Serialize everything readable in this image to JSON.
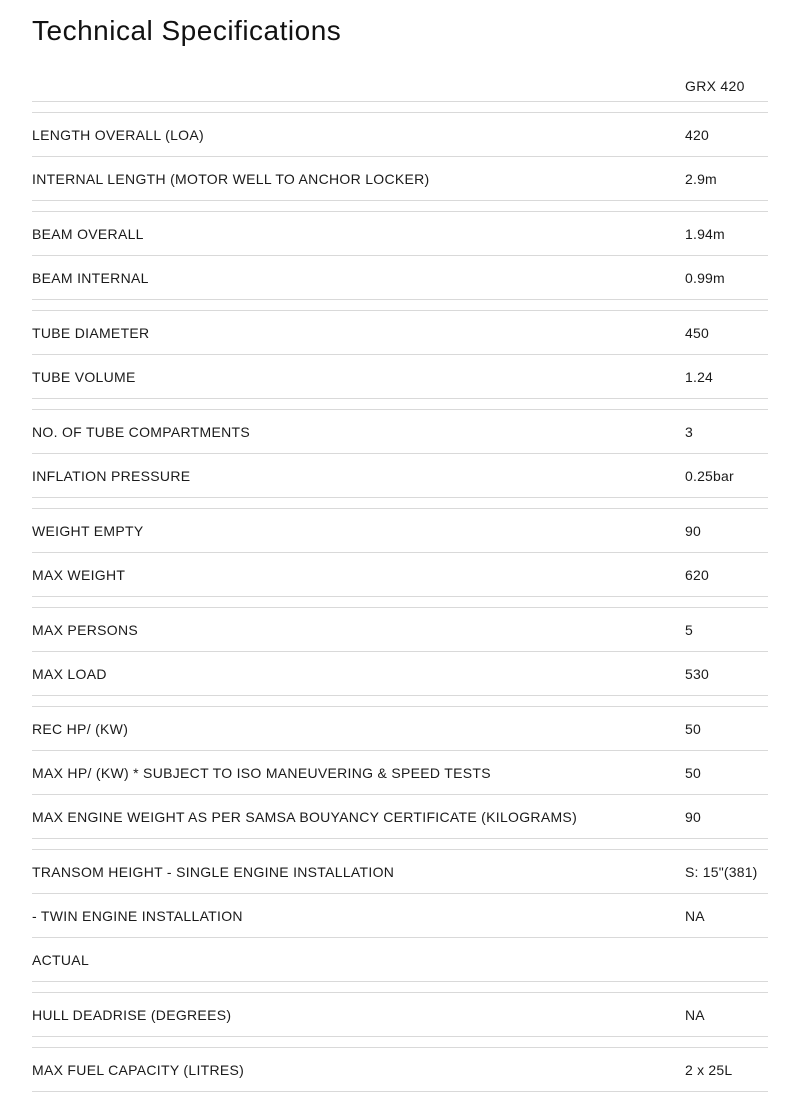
{
  "page": {
    "title": "Technical Specifications",
    "colors": {
      "text": "#1a1a1a",
      "border": "#d9d9d9",
      "background": "#ffffff"
    },
    "table": {
      "column_header": "GRX 420",
      "groups": [
        {
          "rows": [
            {
              "label": "LENGTH OVERALL (LOA)",
              "value": "420"
            },
            {
              "label": "INTERNAL LENGTH (MOTOR WELL TO ANCHOR LOCKER)",
              "value": "2.9m"
            }
          ]
        },
        {
          "rows": [
            {
              "label": "BEAM OVERALL",
              "value": "1.94m"
            },
            {
              "label": "BEAM INTERNAL",
              "value": "0.99m"
            }
          ]
        },
        {
          "rows": [
            {
              "label": "TUBE DIAMETER",
              "value": "450"
            },
            {
              "label": "TUBE VOLUME",
              "value": "1.24"
            }
          ]
        },
        {
          "rows": [
            {
              "label": "NO. OF TUBE COMPARTMENTS",
              "value": "3"
            },
            {
              "label": "INFLATION PRESSURE",
              "value": "0.25bar"
            }
          ]
        },
        {
          "rows": [
            {
              "label": "WEIGHT EMPTY",
              "value": "90"
            },
            {
              "label": "MAX WEIGHT",
              "value": "620"
            }
          ]
        },
        {
          "rows": [
            {
              "label": "MAX PERSONS",
              "value": "5"
            },
            {
              "label": "MAX LOAD",
              "value": "530"
            }
          ]
        },
        {
          "rows": [
            {
              "label": "REC HP/ (KW)",
              "value": "50"
            },
            {
              "label": "MAX HP/ (KW) * SUBJECT TO ISO MANEUVERING & SPEED TESTS",
              "value": "50"
            },
            {
              "label": "MAX ENGINE WEIGHT AS PER SAMSA BOUYANCY CERTIFICATE (KILOGRAMS)",
              "value": "90"
            }
          ]
        },
        {
          "rows": [
            {
              "label": "TRANSOM HEIGHT - SINGLE ENGINE INSTALLATION",
              "value": "S: 15\"(381)"
            },
            {
              "label": "- TWIN ENGINE INSTALLATION",
              "value": "NA"
            },
            {
              "label": "ACTUAL",
              "value": ""
            }
          ]
        },
        {
          "rows": [
            {
              "label": "HULL DEADRISE (DEGREES)",
              "value": "NA"
            }
          ]
        },
        {
          "rows": [
            {
              "label": "MAX FUEL CAPACITY (LITRES)",
              "value": "2 x 25L"
            }
          ]
        }
      ]
    }
  }
}
